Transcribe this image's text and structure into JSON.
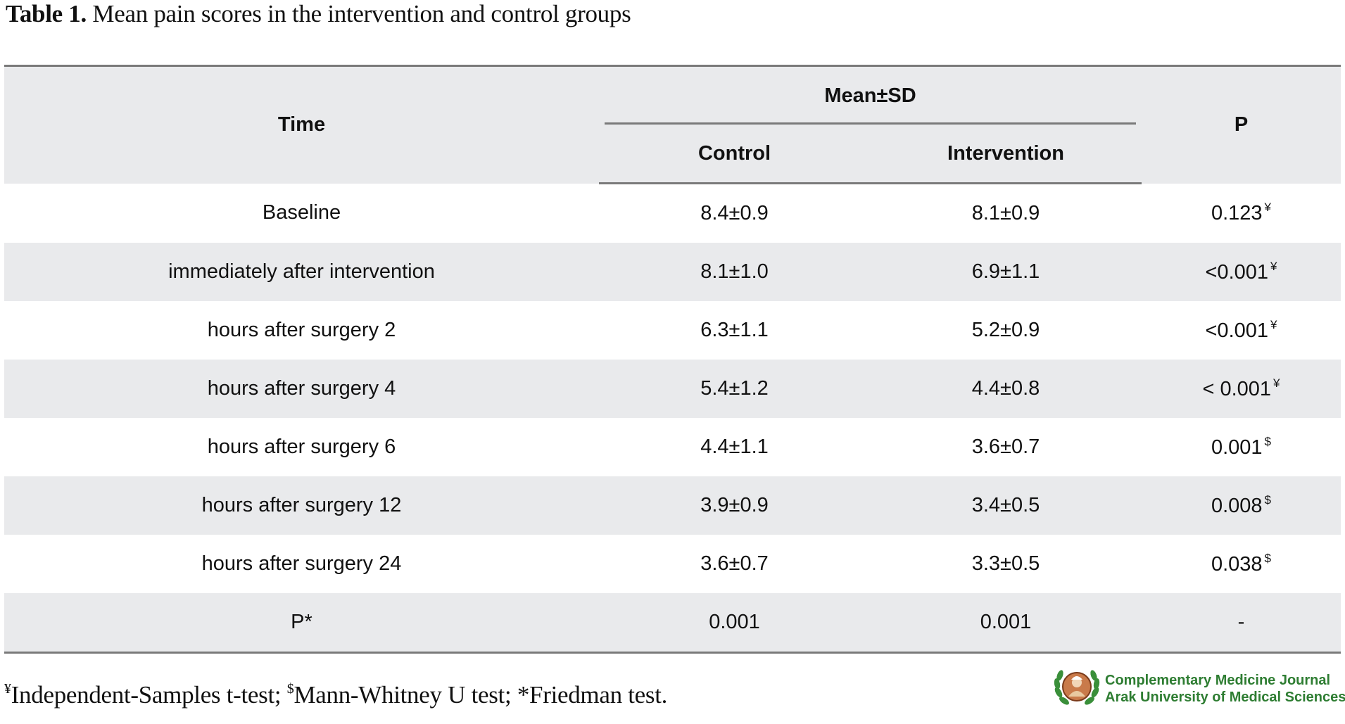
{
  "caption": {
    "label": "Table 1.",
    "text": " Mean pain scores in the intervention and control groups"
  },
  "table": {
    "col_time": "Time",
    "col_group": "Mean±SD",
    "col_control": "Control",
    "col_intervention": "Intervention",
    "col_p": "P",
    "rows": [
      {
        "time": "Baseline",
        "control": "8.4±0.9",
        "intervention": "8.1±0.9",
        "p": "0.123",
        "mark": "¥"
      },
      {
        "time": "immediately after intervention",
        "control": "8.1±1.0",
        "intervention": "6.9±1.1",
        "p": "<0.001",
        "mark": "¥"
      },
      {
        "time": "hours after surgery 2",
        "control": "6.3±1.1",
        "intervention": "5.2±0.9",
        "p": "<0.001",
        "mark": "¥"
      },
      {
        "time": "hours after surgery 4",
        "control": "5.4±1.2",
        "intervention": "4.4±0.8",
        "p": "< 0.001",
        "mark": "¥"
      },
      {
        "time": "hours after surgery 6",
        "control": "4.4±1.1",
        "intervention": "3.6±0.7",
        "p": "0.001",
        "mark": "$"
      },
      {
        "time": "hours after surgery 12",
        "control": "3.9±0.9",
        "intervention": "3.4±0.5",
        "p": "0.008",
        "mark": "$"
      },
      {
        "time": "hours after surgery 24",
        "control": "3.6±0.7",
        "intervention": "3.3±0.5",
        "p": "0.038",
        "mark": "$"
      },
      {
        "time": "P*",
        "control": "0.001",
        "intervention": "0.001",
        "p": "-",
        "mark": ""
      }
    ]
  },
  "footnote": {
    "mark1": "¥",
    "text1": "Independent-Samples t-test; ",
    "mark2": "$",
    "text2": "Mann-Whitney U test; *Friedman test."
  },
  "brand": {
    "line1": "Complementary Medicine Journal",
    "line2": "Arak University of Medical Sciences",
    "logo_icon": "journal-seal-icon",
    "color": "#2e7d32"
  }
}
